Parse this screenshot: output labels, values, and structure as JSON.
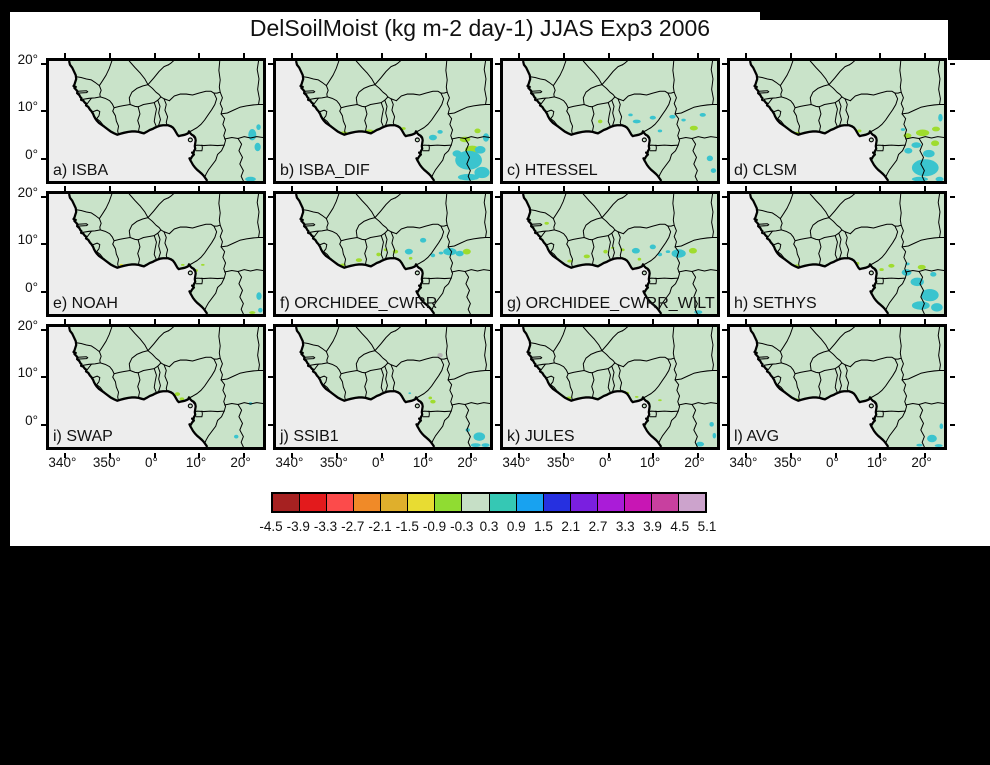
{
  "chart_data": {
    "type": "heatmap",
    "title": "DelSoilMoist (kg m-2 day-1) JJAS Exp3 2006",
    "variable": "DelSoilMoist",
    "units": "kg m-2 day-1",
    "season": "JJAS",
    "experiment": "Exp3",
    "year": "2006",
    "x_ticks": [
      "340°",
      "350°",
      "0°",
      "10°",
      "20°"
    ],
    "y_ticks": [
      "20°",
      "10°",
      "0°"
    ],
    "colorbar": {
      "levels": [
        "-4.5",
        "-3.9",
        "-3.3",
        "-2.7",
        "-2.1",
        "-1.5",
        "-0.9",
        "-0.3",
        "0.3",
        "0.9",
        "1.5",
        "2.1",
        "2.7",
        "3.3",
        "3.9",
        "4.5",
        "5.1"
      ],
      "colors": [
        "#a62121",
        "#e31a1c",
        "#fc4b4b",
        "#f08a28",
        "#dfaf2c",
        "#e8dc32",
        "#90dc32",
        "#c6dfc6",
        "#35c8b4",
        "#18a2f0",
        "#2630e0",
        "#7a1fe0",
        "#aa1cd8",
        "#c816b4",
        "#c8409f",
        "#cca3cc"
      ]
    },
    "map_colors": {
      "land": "#c9e3c9",
      "ocean": "#ededed",
      "outline": "#000000"
    },
    "patch_colors": {
      "g": "#9fdc2e",
      "t": "#3ac4ce",
      "y": "#e2de38",
      "n": "#b3b3b3"
    },
    "panels": [
      {
        "label": "a) ISBA",
        "patches": [
          [
            456,
            156,
            9,
            12,
            "t"
          ],
          [
            468,
            182,
            7,
            9,
            "t"
          ],
          [
            452,
            250,
            12,
            5,
            "t"
          ],
          [
            332,
            251,
            7,
            3,
            "t"
          ],
          [
            470,
            140,
            5,
            6,
            "t"
          ]
        ]
      },
      {
        "label": "b) ISBA_DIF",
        "patches": [
          [
            152,
            152,
            8,
            3,
            "g"
          ],
          [
            210,
            148,
            9,
            3,
            "g"
          ],
          [
            262,
            140,
            7,
            3,
            "g"
          ],
          [
            286,
            143,
            5,
            3,
            "g"
          ],
          [
            352,
            162,
            9,
            6,
            "t"
          ],
          [
            368,
            150,
            6,
            4,
            "t"
          ],
          [
            440,
            188,
            16,
            9,
            "g"
          ],
          [
            424,
            166,
            12,
            6,
            "g"
          ],
          [
            452,
            148,
            7,
            5,
            "g"
          ],
          [
            432,
            210,
            30,
            20,
            "t"
          ],
          [
            462,
            236,
            17,
            12,
            "t"
          ],
          [
            432,
            246,
            24,
            7,
            "t"
          ],
          [
            406,
            196,
            10,
            7,
            "t"
          ],
          [
            458,
            188,
            12,
            8,
            "t"
          ],
          [
            471,
            162,
            7,
            9,
            "t"
          ],
          [
            322,
            168,
            5,
            4,
            "g"
          ]
        ]
      },
      {
        "label": "c) HTESSEL",
        "patches": [
          [
            62,
            106,
            6,
            3,
            "g"
          ],
          [
            218,
            128,
            5,
            4,
            "g"
          ],
          [
            300,
            128,
            9,
            4,
            "t"
          ],
          [
            336,
            120,
            7,
            4,
            "t"
          ],
          [
            286,
            114,
            5,
            3,
            "t"
          ],
          [
            380,
            118,
            7,
            4,
            "t"
          ],
          [
            428,
            142,
            9,
            5,
            "g"
          ],
          [
            448,
            114,
            7,
            4,
            "t"
          ],
          [
            464,
            206,
            7,
            6,
            "t"
          ],
          [
            472,
            232,
            6,
            5,
            "t"
          ],
          [
            322,
            251,
            9,
            3,
            "t"
          ],
          [
            352,
            148,
            5,
            3,
            "t"
          ],
          [
            405,
            125,
            5,
            3,
            "t"
          ]
        ]
      },
      {
        "label": "d) CLSM",
        "patches": [
          [
            150,
            153,
            8,
            3,
            "g"
          ],
          [
            262,
            142,
            6,
            3,
            "g"
          ],
          [
            290,
            148,
            5,
            3,
            "g"
          ],
          [
            398,
            158,
            9,
            5,
            "g"
          ],
          [
            432,
            152,
            15,
            7,
            "g"
          ],
          [
            462,
            144,
            9,
            5,
            "g"
          ],
          [
            418,
            178,
            11,
            6,
            "t"
          ],
          [
            400,
            190,
            9,
            6,
            "t"
          ],
          [
            446,
            196,
            13,
            8,
            "t"
          ],
          [
            460,
            174,
            9,
            6,
            "g"
          ],
          [
            438,
            226,
            30,
            18,
            "t"
          ],
          [
            470,
            250,
            9,
            5,
            "t"
          ],
          [
            426,
            250,
            18,
            5,
            "t"
          ],
          [
            388,
            145,
            5,
            3,
            "t"
          ],
          [
            472,
            120,
            5,
            8,
            "t"
          ]
        ]
      },
      {
        "label": "e) NOAH",
        "patches": [
          [
            162,
            150,
            4,
            2,
            "y"
          ],
          [
            330,
            162,
            4,
            3,
            "g"
          ],
          [
            300,
            150,
            4,
            2,
            "g"
          ],
          [
            471,
            216,
            6,
            8,
            "t"
          ],
          [
            474,
            246,
            5,
            5,
            "t"
          ],
          [
            456,
            251,
            7,
            3,
            "g"
          ],
          [
            345,
            150,
            4,
            2,
            "g"
          ],
          [
            322,
            168,
            4,
            3,
            "g"
          ]
        ]
      },
      {
        "label": "f) ORCHIDEE_CWRR",
        "patches": [
          [
            150,
            150,
            6,
            3,
            "g"
          ],
          [
            186,
            140,
            7,
            4,
            "g"
          ],
          [
            230,
            128,
            5,
            4,
            "g"
          ],
          [
            268,
            122,
            6,
            4,
            "g"
          ],
          [
            246,
            118,
            4,
            3,
            "g"
          ],
          [
            298,
            122,
            9,
            6,
            "t"
          ],
          [
            330,
            98,
            7,
            5,
            "t"
          ],
          [
            390,
            122,
            15,
            8,
            "t"
          ],
          [
            412,
            126,
            9,
            6,
            "t"
          ],
          [
            428,
            122,
            9,
            6,
            "g"
          ],
          [
            352,
            130,
            5,
            4,
            "t"
          ],
          [
            330,
            250,
            10,
            4,
            "t"
          ],
          [
            302,
            136,
            4,
            3,
            "g"
          ],
          [
            370,
            125,
            5,
            3,
            "t"
          ]
        ]
      },
      {
        "label": "g) ORCHIDEE_CWRR_WILT",
        "patches": [
          [
            98,
            62,
            5,
            3,
            "g"
          ],
          [
            150,
            142,
            6,
            3,
            "g"
          ],
          [
            188,
            132,
            7,
            4,
            "g"
          ],
          [
            230,
            122,
            5,
            4,
            "g"
          ],
          [
            268,
            118,
            5,
            3,
            "g"
          ],
          [
            298,
            120,
            9,
            6,
            "t"
          ],
          [
            336,
            112,
            7,
            5,
            "t"
          ],
          [
            394,
            126,
            16,
            9,
            "t"
          ],
          [
            426,
            120,
            9,
            6,
            "g"
          ],
          [
            352,
            128,
            5,
            4,
            "t"
          ],
          [
            438,
            250,
            9,
            4,
            "t"
          ],
          [
            306,
            138,
            4,
            3,
            "g"
          ],
          [
            246,
            114,
            4,
            2,
            "g"
          ],
          [
            370,
            122,
            5,
            3,
            "t"
          ]
        ]
      },
      {
        "label": "h) SETHYS",
        "patches": [
          [
            150,
            152,
            6,
            3,
            "g"
          ],
          [
            262,
            142,
            6,
            3,
            "g"
          ],
          [
            286,
            147,
            4,
            3,
            "g"
          ],
          [
            362,
            152,
            7,
            4,
            "g"
          ],
          [
            396,
            166,
            11,
            7,
            "t"
          ],
          [
            420,
            186,
            15,
            9,
            "t"
          ],
          [
            448,
            214,
            20,
            13,
            "t"
          ],
          [
            464,
            240,
            13,
            9,
            "t"
          ],
          [
            430,
            155,
            9,
            5,
            "g"
          ],
          [
            456,
            170,
            7,
            5,
            "t"
          ],
          [
            428,
            236,
            20,
            9,
            "t"
          ],
          [
            398,
            148,
            5,
            3,
            "t"
          ],
          [
            340,
            160,
            5,
            3,
            "g"
          ]
        ]
      },
      {
        "label": "i) SWAP",
        "patches": [
          [
            288,
            142,
            6,
            4,
            "g"
          ],
          [
            298,
            152,
            5,
            3,
            "g"
          ],
          [
            305,
            172,
            5,
            4,
            "t"
          ],
          [
            300,
            192,
            4,
            4,
            "t"
          ],
          [
            420,
            232,
            5,
            4,
            "t"
          ],
          [
            452,
            162,
            4,
            3,
            "t"
          ],
          [
            282,
            150,
            4,
            2,
            "g"
          ],
          [
            295,
            160,
            4,
            3,
            "g"
          ]
        ]
      },
      {
        "label": "j) SSIB1",
        "patches": [
          [
            368,
            60,
            6,
            5,
            "n"
          ],
          [
            352,
            158,
            6,
            4,
            "g"
          ],
          [
            346,
            150,
            4,
            3,
            "g"
          ],
          [
            456,
            232,
            13,
            9,
            "t"
          ],
          [
            470,
            250,
            9,
            4,
            "t"
          ],
          [
            448,
            250,
            11,
            4,
            "t"
          ],
          [
            430,
            218,
            5,
            4,
            "t"
          ],
          [
            300,
            140,
            3,
            2,
            "t"
          ]
        ]
      },
      {
        "label": "k) JULES",
        "patches": [
          [
            148,
            150,
            5,
            3,
            "g"
          ],
          [
            278,
            140,
            5,
            3,
            "g"
          ],
          [
            300,
            148,
            4,
            2,
            "g"
          ],
          [
            442,
            248,
            9,
            5,
            "t"
          ],
          [
            468,
            206,
            5,
            5,
            "t"
          ],
          [
            352,
            155,
            4,
            2,
            "g"
          ],
          [
            474,
            230,
            4,
            6,
            "t"
          ]
        ]
      },
      {
        "label": "l) AVG",
        "patches": [
          [
            150,
            153,
            4,
            2,
            "g"
          ],
          [
            453,
            236,
            11,
            8,
            "t"
          ],
          [
            468,
            251,
            9,
            3,
            "t"
          ],
          [
            331,
            251,
            7,
            3,
            "t"
          ],
          [
            425,
            250,
            7,
            3,
            "t"
          ],
          [
            474,
            210,
            4,
            6,
            "t"
          ]
        ]
      }
    ]
  }
}
